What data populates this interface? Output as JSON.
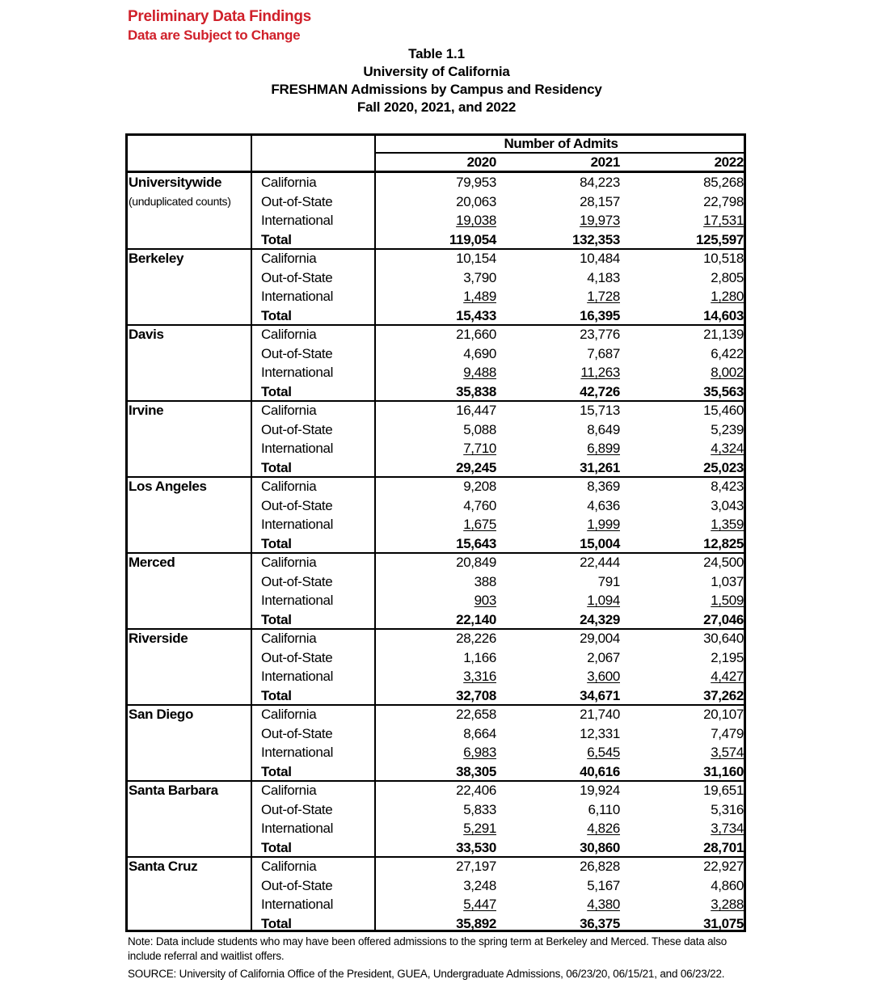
{
  "header": {
    "preliminary": "Preliminary Data Findings",
    "subject_to_change": "Data are Subject to Change",
    "table_number": "Table 1.1",
    "institution": "University of California",
    "table_title": "FRESHMAN Admissions by Campus and Residency",
    "terms": "Fall 2020, 2021, and 2022",
    "accent_color": "#d0202a"
  },
  "table": {
    "group_header": "Number of Admits",
    "years": [
      "2020",
      "2021",
      "2022"
    ],
    "residency_labels": [
      "California",
      "Out-of-State",
      "International",
      "Total"
    ],
    "campuses": [
      {
        "name": "Universitywide",
        "sub": "(unduplicated counts)",
        "rows": [
          [
            "79,953",
            "84,223",
            "85,268"
          ],
          [
            "20,063",
            "28,157",
            "22,798"
          ],
          [
            "19,038",
            "19,973",
            "17,531"
          ],
          [
            "119,054",
            "132,353",
            "125,597"
          ]
        ]
      },
      {
        "name": "Berkeley",
        "rows": [
          [
            "10,154",
            "10,484",
            "10,518"
          ],
          [
            "3,790",
            "4,183",
            "2,805"
          ],
          [
            "1,489",
            "1,728",
            "1,280"
          ],
          [
            "15,433",
            "16,395",
            "14,603"
          ]
        ]
      },
      {
        "name": "Davis",
        "rows": [
          [
            "21,660",
            "23,776",
            "21,139"
          ],
          [
            "4,690",
            "7,687",
            "6,422"
          ],
          [
            "9,488",
            "11,263",
            "8,002"
          ],
          [
            "35,838",
            "42,726",
            "35,563"
          ]
        ]
      },
      {
        "name": "Irvine",
        "rows": [
          [
            "16,447",
            "15,713",
            "15,460"
          ],
          [
            "5,088",
            "8,649",
            "5,239"
          ],
          [
            "7,710",
            "6,899",
            "4,324"
          ],
          [
            "29,245",
            "31,261",
            "25,023"
          ]
        ]
      },
      {
        "name": "Los Angeles",
        "rows": [
          [
            "9,208",
            "8,369",
            "8,423"
          ],
          [
            "4,760",
            "4,636",
            "3,043"
          ],
          [
            "1,675",
            "1,999",
            "1,359"
          ],
          [
            "15,643",
            "15,004",
            "12,825"
          ]
        ]
      },
      {
        "name": "Merced",
        "rows": [
          [
            "20,849",
            "22,444",
            "24,500"
          ],
          [
            "388",
            "791",
            "1,037"
          ],
          [
            "903",
            "1,094",
            "1,509"
          ],
          [
            "22,140",
            "24,329",
            "27,046"
          ]
        ]
      },
      {
        "name": "Riverside",
        "rows": [
          [
            "28,226",
            "29,004",
            "30,640"
          ],
          [
            "1,166",
            "2,067",
            "2,195"
          ],
          [
            "3,316",
            "3,600",
            "4,427"
          ],
          [
            "32,708",
            "34,671",
            "37,262"
          ]
        ]
      },
      {
        "name": "San Diego",
        "rows": [
          [
            "22,658",
            "21,740",
            "20,107"
          ],
          [
            "8,664",
            "12,331",
            "7,479"
          ],
          [
            "6,983",
            "6,545",
            "3,574"
          ],
          [
            "38,305",
            "40,616",
            "31,160"
          ]
        ]
      },
      {
        "name": "Santa Barbara",
        "rows": [
          [
            "22,406",
            "19,924",
            "19,651"
          ],
          [
            "5,833",
            "6,110",
            "5,316"
          ],
          [
            "5,291",
            "4,826",
            "3,734"
          ],
          [
            "33,530",
            "30,860",
            "28,701"
          ]
        ]
      },
      {
        "name": "Santa Cruz",
        "rows": [
          [
            "27,197",
            "26,828",
            "22,927"
          ],
          [
            "3,248",
            "5,167",
            "4,860"
          ],
          [
            "5,447",
            "4,380",
            "3,288"
          ],
          [
            "35,892",
            "36,375",
            "31,075"
          ]
        ]
      }
    ]
  },
  "footer": {
    "note": "Note: Data include students who may have been offered admissions to the spring term at Berkeley and Merced. These data also include referral and waitlist offers.",
    "source": "SOURCE: University of California Office of the President, GUEA, Undergraduate Admissions, 06/23/20, 06/15/21, and 06/23/22."
  }
}
